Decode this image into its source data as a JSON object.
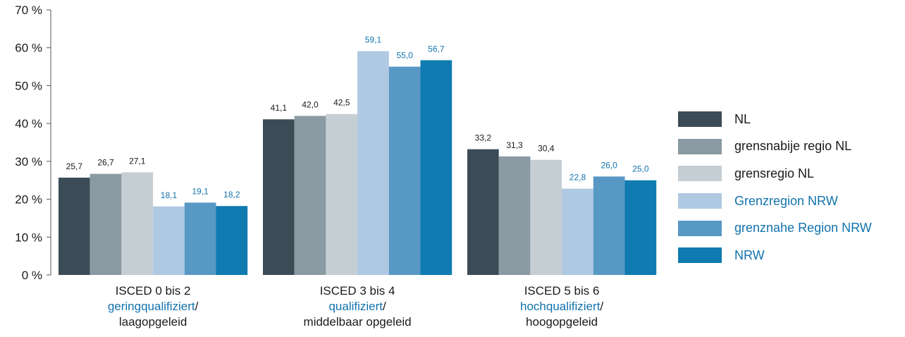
{
  "chart_data": {
    "type": "bar",
    "ylim": [
      0,
      70
    ],
    "yticks": [
      "0 %",
      "10 %",
      "20 %",
      "30 %",
      "40 %",
      "50 %",
      "60 %",
      "70 %"
    ],
    "categories": [
      {
        "line1": "ISCED 0 bis 2",
        "line2": "geringqualifiziert",
        "slash": "/",
        "line3": "laagopgeleid"
      },
      {
        "line1": "ISCED 3 bis 4",
        "line2": "qualifiziert",
        "slash": "/",
        "line3": "middelbaar opgeleid"
      },
      {
        "line1": "ISCED 5 bis 6",
        "line2": "hochqualifiziert",
        "slash": "/",
        "line3": "hoogopgeleid"
      }
    ],
    "series": [
      {
        "name": "NL",
        "color": "#3c4c56",
        "text_color": "#1a1a1a",
        "values": [
          25.7,
          41.1,
          33.2
        ],
        "labels": [
          "25,7",
          "41,1",
          "33,2"
        ]
      },
      {
        "name": "grensnabije regio NL",
        "color": "#8a9aa3",
        "text_color": "#1a1a1a",
        "values": [
          26.7,
          42.0,
          31.3
        ],
        "labels": [
          "26,7",
          "42,0",
          "31,3"
        ]
      },
      {
        "name": "grensregio NL",
        "color": "#c5ced3",
        "text_color": "#1a1a1a",
        "values": [
          27.1,
          42.5,
          30.4
        ],
        "labels": [
          "27,1",
          "42,5",
          "30,4"
        ]
      },
      {
        "name": "Grenzregion NRW",
        "color": "#afc9e3",
        "text_color": "#1273ad",
        "values": [
          18.1,
          59.1,
          22.8
        ],
        "labels": [
          "18,1",
          "59,1",
          "22,8"
        ]
      },
      {
        "name": "grenznahe Region NRW",
        "color": "#5898c5",
        "text_color": "#1273ad",
        "values": [
          19.1,
          55.0,
          26.0
        ],
        "labels": [
          "19,1",
          "55,0",
          "26,0"
        ]
      },
      {
        "name": "NRW",
        "color": "#0f7bb0",
        "text_color": "#1273ad",
        "values": [
          18.2,
          56.7,
          25.0
        ],
        "labels": [
          "18,2",
          "56,7",
          "25,0"
        ]
      }
    ],
    "legend_position": "right",
    "grid": false
  }
}
